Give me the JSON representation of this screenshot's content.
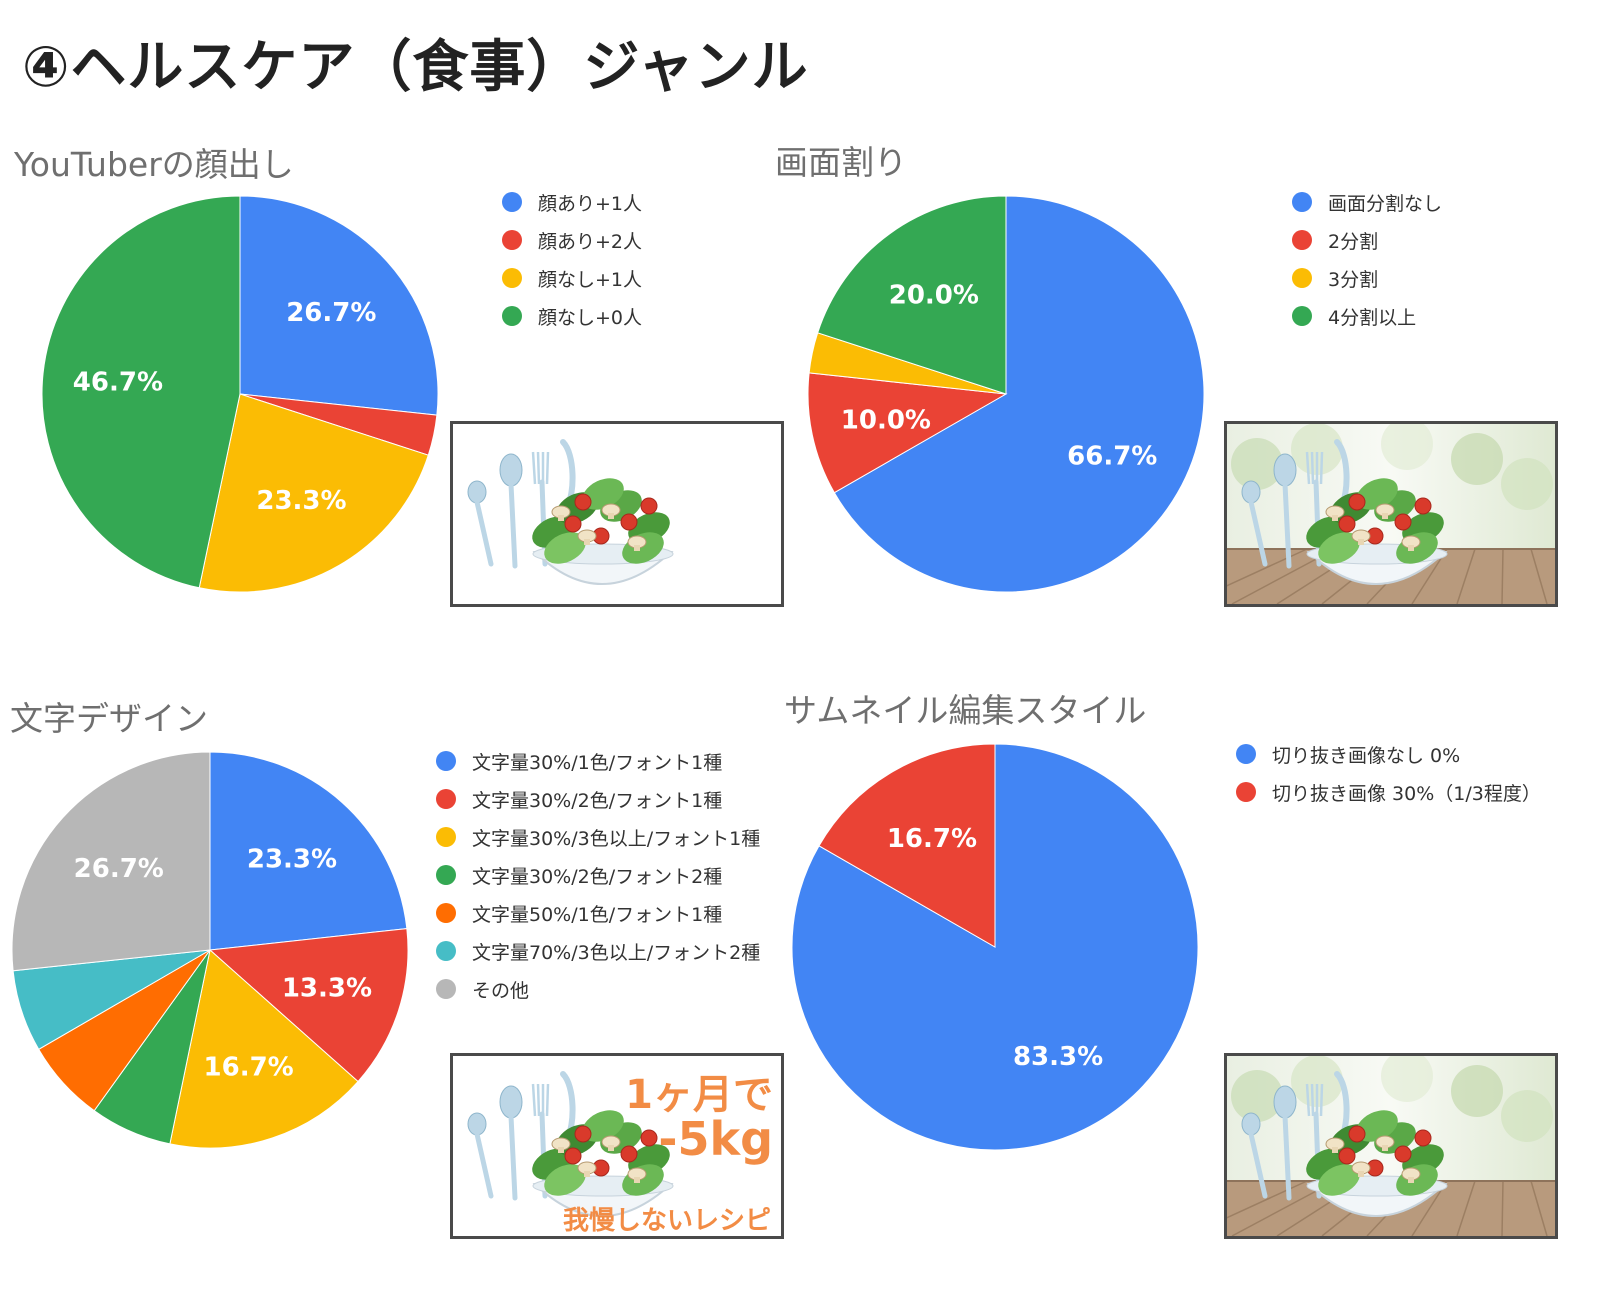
{
  "page": {
    "title": "④ヘルスケア（食事）ジャンル"
  },
  "colors": {
    "blue": "#4285f4",
    "red": "#ea4335",
    "yellow": "#fbbc04",
    "green": "#34a853",
    "orange": "#ff6d01",
    "teal": "#46bdc6",
    "gray": "#b7b7b7"
  },
  "chart_data": [
    {
      "type": "pie",
      "title": "YouTuberの顔出し",
      "categories": [
        "顔あり+1人",
        "顔あり+2人",
        "顔なし+1人",
        "顔なし+0人"
      ],
      "values": [
        26.7,
        3.3,
        23.3,
        46.7
      ],
      "data_labels": [
        "26.7%",
        "",
        "23.3%",
        "46.7%"
      ],
      "colors": [
        "#4285f4",
        "#ea4335",
        "#fbbc04",
        "#34a853"
      ],
      "legend": "right"
    },
    {
      "type": "pie",
      "title": "画面割り",
      "categories": [
        "画面分割なし",
        "2分割",
        "3分割",
        "4分割以上"
      ],
      "values": [
        66.7,
        10.0,
        3.3,
        20.0
      ],
      "data_labels": [
        "66.7%",
        "10.0%",
        "",
        "20.0%"
      ],
      "colors": [
        "#4285f4",
        "#ea4335",
        "#fbbc04",
        "#34a853"
      ],
      "legend": "right"
    },
    {
      "type": "pie",
      "title": "文字デザイン",
      "categories": [
        "文字量30%/1色/フォント1種",
        "文字量30%/2色/フォント1種",
        "文字量30%/3色以上/フォント1種",
        "文字量30%/2色/フォント2種",
        "文字量50%/1色/フォント1種",
        "文字量70%/3色以上/フォント2種",
        "その他"
      ],
      "values": [
        23.3,
        13.3,
        16.7,
        6.7,
        6.7,
        6.7,
        26.7
      ],
      "data_labels": [
        "23.3%",
        "13.3%",
        "16.7%",
        "",
        "",
        "",
        "26.7%"
      ],
      "colors": [
        "#4285f4",
        "#ea4335",
        "#fbbc04",
        "#34a853",
        "#ff6d01",
        "#46bdc6",
        "#b7b7b7"
      ],
      "legend": "right"
    },
    {
      "type": "pie",
      "title": "サムネイル編集スタイル",
      "categories": [
        "切り抜き画像なし 0%",
        "切り抜き画像 30%（1/3程度）"
      ],
      "values": [
        83.3,
        16.7
      ],
      "data_labels": [
        "83.3%",
        "16.7%"
      ],
      "colors": [
        "#4285f4",
        "#ea4335"
      ],
      "legend": "right"
    }
  ],
  "thumbnails": {
    "t3_line1": "1ヶ月で",
    "t3_line2": "-5kg",
    "t3_caption": "我慢しないレシピ"
  }
}
